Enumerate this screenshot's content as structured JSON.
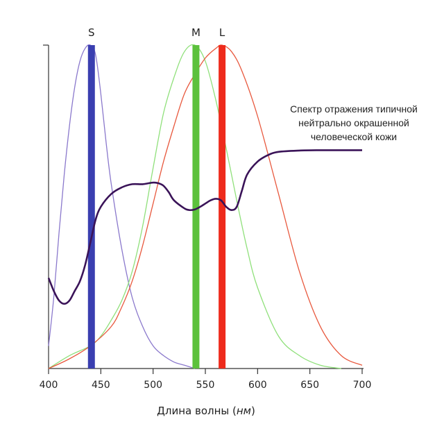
{
  "chart_data": {
    "type": "line",
    "title": "",
    "xlabel": "Длина волны",
    "xlabel_unit": "нм",
    "ylabel": "",
    "xlim": [
      400,
      700
    ],
    "ylim": [
      0,
      1
    ],
    "x_ticks": [
      400,
      450,
      500,
      550,
      600,
      650,
      700
    ],
    "grid": false,
    "cone_peaks": [
      {
        "name": "S",
        "wavelength": 441,
        "color": "#3a3fb0"
      },
      {
        "name": "M",
        "wavelength": 541,
        "color": "#5cc13c"
      },
      {
        "name": "L",
        "wavelength": 566,
        "color": "#ee2b1c"
      }
    ],
    "series": [
      {
        "name": "S",
        "color": "#8a78cc",
        "x": [
          400,
          405,
          410,
          415,
          420,
          425,
          430,
          435,
          440,
          445,
          450,
          455,
          460,
          470,
          480,
          490,
          500,
          510,
          520,
          530,
          540
        ],
        "y": [
          0.07,
          0.22,
          0.42,
          0.6,
          0.75,
          0.87,
          0.95,
          0.99,
          1.0,
          0.97,
          0.85,
          0.7,
          0.57,
          0.37,
          0.22,
          0.13,
          0.07,
          0.04,
          0.02,
          0.01,
          0.0
        ]
      },
      {
        "name": "M",
        "color": "#8fe07a",
        "x": [
          400,
          420,
          440,
          450,
          460,
          470,
          480,
          490,
          500,
          510,
          520,
          530,
          540,
          550,
          560,
          570,
          580,
          590,
          600,
          620,
          640,
          660,
          680
        ],
        "y": [
          0.0,
          0.04,
          0.07,
          0.1,
          0.15,
          0.21,
          0.3,
          0.44,
          0.62,
          0.79,
          0.9,
          0.98,
          1.0,
          0.95,
          0.83,
          0.68,
          0.52,
          0.37,
          0.25,
          0.1,
          0.04,
          0.01,
          0.0
        ]
      },
      {
        "name": "L",
        "color": "#e8583d",
        "x": [
          400,
          420,
          440,
          460,
          470,
          480,
          490,
          500,
          510,
          520,
          530,
          540,
          550,
          560,
          566,
          575,
          585,
          600,
          620,
          640,
          660,
          680,
          700
        ],
        "y": [
          0.0,
          0.03,
          0.07,
          0.13,
          0.19,
          0.27,
          0.38,
          0.51,
          0.64,
          0.75,
          0.85,
          0.91,
          0.96,
          0.99,
          1.0,
          0.98,
          0.92,
          0.78,
          0.54,
          0.3,
          0.13,
          0.04,
          0.01
        ]
      },
      {
        "name": "Спектр отражения типичной нейтрально окрашенной человеческой кожи",
        "color": "#3a1358",
        "x": [
          400,
          405,
          410,
          415,
          420,
          425,
          430,
          435,
          440,
          445,
          450,
          460,
          470,
          480,
          490,
          500,
          505,
          510,
          515,
          520,
          530,
          535,
          540,
          545,
          550,
          555,
          560,
          565,
          570,
          575,
          580,
          585,
          590,
          600,
          610,
          620,
          640,
          660,
          680,
          700
        ],
        "y": [
          0.28,
          0.24,
          0.21,
          0.2,
          0.21,
          0.24,
          0.27,
          0.32,
          0.39,
          0.46,
          0.5,
          0.54,
          0.56,
          0.57,
          0.57,
          0.575,
          0.573,
          0.565,
          0.545,
          0.52,
          0.495,
          0.49,
          0.492,
          0.5,
          0.51,
          0.52,
          0.525,
          0.52,
          0.5,
          0.49,
          0.5,
          0.55,
          0.6,
          0.64,
          0.66,
          0.67,
          0.674,
          0.675,
          0.675,
          0.675
        ]
      }
    ],
    "annotation": {
      "lines": [
        "Спектр отражения типичной",
        "нейтрально окрашенной",
        "человеческой кожи"
      ]
    }
  }
}
